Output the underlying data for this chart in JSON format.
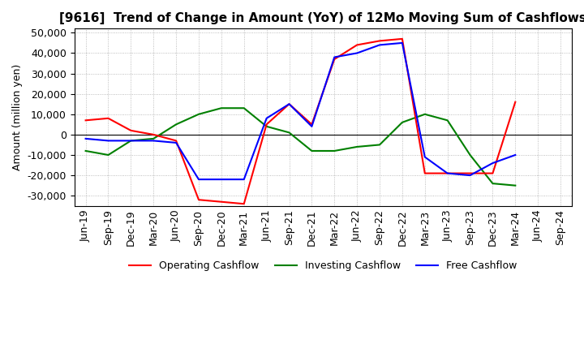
{
  "title": "[9616]  Trend of Change in Amount (YoY) of 12Mo Moving Sum of Cashflows",
  "ylabel": "Amount (million yen)",
  "labels": [
    "Jun-19",
    "Sep-19",
    "Dec-19",
    "Mar-20",
    "Jun-20",
    "Sep-20",
    "Dec-20",
    "Mar-21",
    "Jun-21",
    "Sep-21",
    "Dec-21",
    "Mar-22",
    "Jun-22",
    "Sep-22",
    "Dec-22",
    "Mar-23",
    "Jun-23",
    "Sep-23",
    "Dec-23",
    "Mar-24",
    "Jun-24",
    "Sep-24"
  ],
  "operating": [
    7000,
    8000,
    2000,
    0,
    -3000,
    -32000,
    -33000,
    -34000,
    5000,
    15000,
    5000,
    37000,
    44000,
    46000,
    47000,
    -19000,
    -19000,
    -19000,
    -19000,
    16000,
    null,
    null
  ],
  "investing": [
    -8000,
    -10000,
    -3000,
    -2000,
    5000,
    10000,
    13000,
    13000,
    4000,
    1000,
    -8000,
    -8000,
    -6000,
    -5000,
    6000,
    10000,
    7000,
    -10000,
    -24000,
    -25000,
    null,
    null
  ],
  "free": [
    -2000,
    -3000,
    -3000,
    -3000,
    -4000,
    -22000,
    -22000,
    -22000,
    8000,
    15000,
    4000,
    38000,
    40000,
    44000,
    45000,
    -11000,
    -19000,
    -20000,
    -14000,
    -10000,
    null,
    null
  ],
  "ylim": [
    -35000,
    52000
  ],
  "yticks": [
    -30000,
    -20000,
    -10000,
    0,
    10000,
    20000,
    30000,
    40000,
    50000
  ],
  "operating_color": "#ff0000",
  "investing_color": "#008000",
  "free_color": "#0000ff",
  "background_color": "#ffffff",
  "grid_color": "#aaaaaa",
  "title_fontsize": 11,
  "axis_fontsize": 9,
  "legend_fontsize": 9,
  "linewidth": 1.5
}
